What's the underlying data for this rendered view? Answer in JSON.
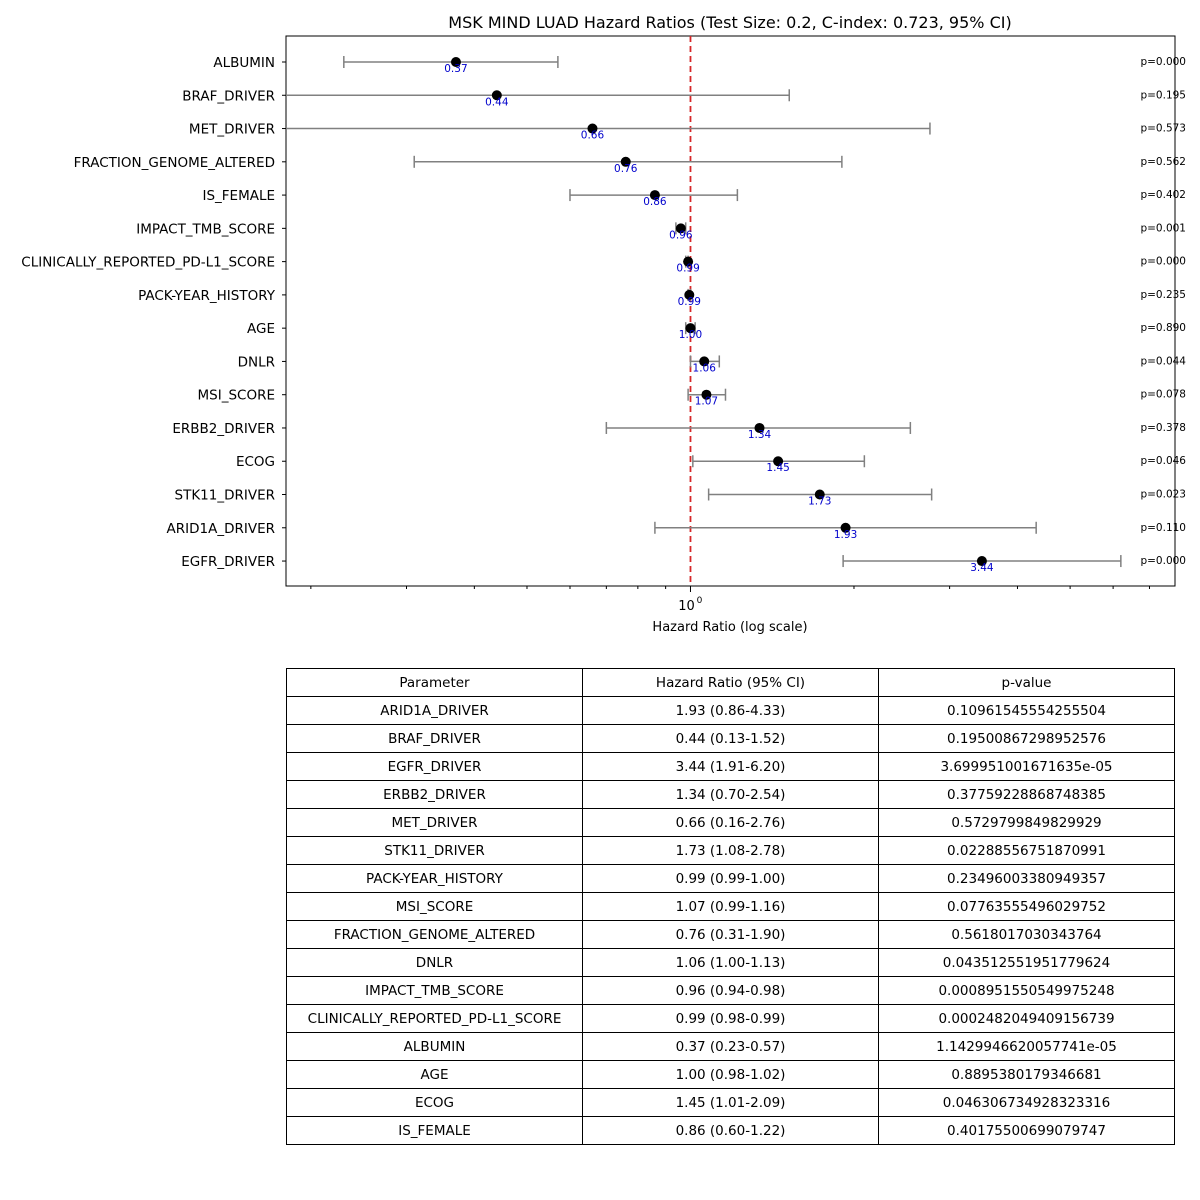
{
  "chart_data": {
    "type": "scatter",
    "subtype": "forest-plot",
    "title": "MSK MIND LUAD Hazard Ratios (Test Size: 0.2, C-index: 0.723, 95% CI)",
    "xlabel": "Hazard Ratio (log scale)",
    "xscale": "log",
    "xlim": [
      0.18,
      7.8
    ],
    "xticks": [
      {
        "value": 1,
        "label": "10",
        "exponent": "0"
      }
    ],
    "reference_line": {
      "value": 1,
      "style": "dashed",
      "color": "#d62728"
    },
    "colors": {
      "point": "#000000",
      "ci": "#808080",
      "value_label": "#0000cc"
    },
    "rows": [
      {
        "name": "ALBUMIN",
        "hr": 0.37,
        "lo": 0.23,
        "hi": 0.57,
        "hr_label": "0.37",
        "p_label": "p=0.000"
      },
      {
        "name": "BRAF_DRIVER",
        "hr": 0.44,
        "lo": 0.13,
        "hi": 1.52,
        "hr_label": "0.44",
        "p_label": "p=0.195"
      },
      {
        "name": "MET_DRIVER",
        "hr": 0.66,
        "lo": 0.16,
        "hi": 2.76,
        "hr_label": "0.66",
        "p_label": "p=0.573"
      },
      {
        "name": "FRACTION_GENOME_ALTERED",
        "hr": 0.76,
        "lo": 0.31,
        "hi": 1.9,
        "hr_label": "0.76",
        "p_label": "p=0.562"
      },
      {
        "name": "IS_FEMALE",
        "hr": 0.86,
        "lo": 0.6,
        "hi": 1.22,
        "hr_label": "0.86",
        "p_label": "p=0.402"
      },
      {
        "name": "IMPACT_TMB_SCORE",
        "hr": 0.96,
        "lo": 0.94,
        "hi": 0.98,
        "hr_label": "0.96",
        "p_label": "p=0.001"
      },
      {
        "name": "CLINICALLY_REPORTED_PD-L1_SCORE",
        "hr": 0.99,
        "lo": 0.98,
        "hi": 0.99,
        "hr_label": "0.99",
        "p_label": "p=0.000"
      },
      {
        "name": "PACK-YEAR_HISTORY",
        "hr": 0.995,
        "lo": 0.99,
        "hi": 1.0,
        "hr_label": "0.99",
        "p_label": "p=0.235"
      },
      {
        "name": "AGE",
        "hr": 1.0,
        "lo": 0.98,
        "hi": 1.02,
        "hr_label": "1.00",
        "p_label": "p=0.890"
      },
      {
        "name": "DNLR",
        "hr": 1.06,
        "lo": 1.0,
        "hi": 1.13,
        "hr_label": "1.06",
        "p_label": "p=0.044"
      },
      {
        "name": "MSI_SCORE",
        "hr": 1.07,
        "lo": 0.99,
        "hi": 1.16,
        "hr_label": "1.07",
        "p_label": "p=0.078"
      },
      {
        "name": "ERBB2_DRIVER",
        "hr": 1.34,
        "lo": 0.7,
        "hi": 2.54,
        "hr_label": "1.34",
        "p_label": "p=0.378"
      },
      {
        "name": "ECOG",
        "hr": 1.45,
        "lo": 1.01,
        "hi": 2.09,
        "hr_label": "1.45",
        "p_label": "p=0.046"
      },
      {
        "name": "STK11_DRIVER",
        "hr": 1.73,
        "lo": 1.08,
        "hi": 2.78,
        "hr_label": "1.73",
        "p_label": "p=0.023"
      },
      {
        "name": "ARID1A_DRIVER",
        "hr": 1.93,
        "lo": 0.86,
        "hi": 4.33,
        "hr_label": "1.93",
        "p_label": "p=0.110"
      },
      {
        "name": "EGFR_DRIVER",
        "hr": 3.44,
        "lo": 1.91,
        "hi": 6.2,
        "hr_label": "3.44",
        "p_label": "p=0.000"
      }
    ]
  },
  "table": {
    "headers": [
      "Parameter",
      "Hazard Ratio (95% CI)",
      "p-value"
    ],
    "rows": [
      [
        "ARID1A_DRIVER",
        "1.93 (0.86-4.33)",
        "0.10961545554255504"
      ],
      [
        "BRAF_DRIVER",
        "0.44 (0.13-1.52)",
        "0.19500867298952576"
      ],
      [
        "EGFR_DRIVER",
        "3.44 (1.91-6.20)",
        "3.699951001671635e-05"
      ],
      [
        "ERBB2_DRIVER",
        "1.34 (0.70-2.54)",
        "0.37759228868748385"
      ],
      [
        "MET_DRIVER",
        "0.66 (0.16-2.76)",
        "0.5729799849829929"
      ],
      [
        "STK11_DRIVER",
        "1.73 (1.08-2.78)",
        "0.02288556751870991"
      ],
      [
        "PACK-YEAR_HISTORY",
        "0.99 (0.99-1.00)",
        "0.23496003380949357"
      ],
      [
        "MSI_SCORE",
        "1.07 (0.99-1.16)",
        "0.07763555496029752"
      ],
      [
        "FRACTION_GENOME_ALTERED",
        "0.76 (0.31-1.90)",
        "0.5618017030343764"
      ],
      [
        "DNLR",
        "1.06 (1.00-1.13)",
        "0.043512551951779624"
      ],
      [
        "IMPACT_TMB_SCORE",
        "0.96 (0.94-0.98)",
        "0.0008951550549975248"
      ],
      [
        "CLINICALLY_REPORTED_PD-L1_SCORE",
        "0.99 (0.98-0.99)",
        "0.0002482049409156739"
      ],
      [
        "ALBUMIN",
        "0.37 (0.23-0.57)",
        "1.1429946620057741e-05"
      ],
      [
        "AGE",
        "1.00 (0.98-1.02)",
        "0.8895380179346681"
      ],
      [
        "ECOG",
        "1.45 (1.01-2.09)",
        "0.046306734928323316"
      ],
      [
        "IS_FEMALE",
        "0.86 (0.60-1.22)",
        "0.40175500699079747"
      ]
    ]
  }
}
